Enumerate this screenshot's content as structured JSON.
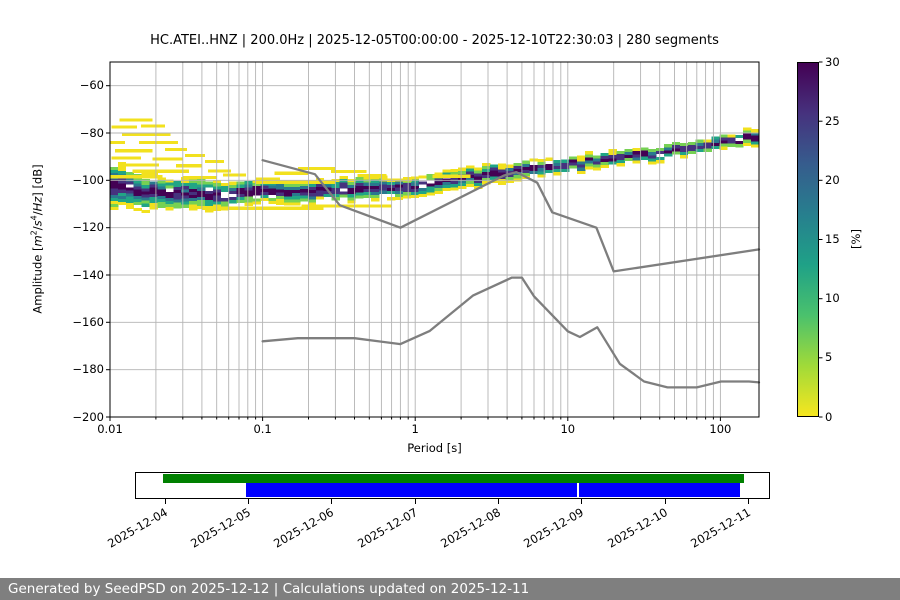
{
  "chart_data": {
    "type": "heatmap",
    "title": "HC.ATEI..HNZ | 200.0Hz | 2025-12-05T00:00:00 - 2025-12-10T22:30:03 | 280 segments",
    "xlabel": "Period [s]",
    "ylabel_plain": "Amplitude [m2/s4/Hz] [dB]",
    "ylabel_parts": {
      "pre": "Amplitude [",
      "m": "m",
      "m_exp": "2",
      "sl1": "/",
      "s": "s",
      "s_exp": "4",
      "sl2": "/",
      "hz": "Hz",
      "post": "] [dB]"
    },
    "xlim": [
      0.01,
      179
    ],
    "ylim": [
      -200,
      -50
    ],
    "x_ticks": {
      "values": [
        0.01,
        0.1,
        1,
        10,
        100
      ],
      "labels": [
        "0.01",
        "0.1",
        "1",
        "10",
        "100"
      ]
    },
    "y_ticks": {
      "values": [
        -60,
        -80,
        -100,
        -120,
        -140,
        -160,
        -180,
        -200
      ],
      "labels": [
        "−60",
        "−80",
        "−100",
        "−120",
        "−140",
        "−160",
        "−180",
        "−200"
      ]
    },
    "colorbar": {
      "min": 0,
      "max": 30,
      "ticks": [
        0,
        5,
        10,
        15,
        20,
        25,
        30
      ],
      "tick_labels": [
        "0",
        "5",
        "10",
        "15",
        "20",
        "25",
        "30"
      ],
      "label": "[%]",
      "gradient_top_to_bottom": [
        "#440154",
        "#46327e",
        "#365c8d",
        "#277f8e",
        "#1fa187",
        "#4ac16d",
        "#a0da39",
        "#f6e61f"
      ]
    },
    "percent_colors": [
      [
        0.16,
        "#440154"
      ],
      [
        0.32,
        "#46327e"
      ],
      [
        0.47,
        "#2a788e"
      ],
      [
        0.62,
        "#21a585"
      ],
      [
        0.8,
        "#76d153"
      ],
      [
        1.3,
        "#f2e11e"
      ]
    ],
    "band": [
      [
        0.01,
        -101.5,
        9.5
      ],
      [
        0.013,
        -104,
        8
      ],
      [
        0.02,
        -105.5,
        7
      ],
      [
        0.035,
        -106,
        6.5
      ],
      [
        0.06,
        -106,
        5.5
      ],
      [
        0.1,
        -105,
        5
      ],
      [
        0.2,
        -104.5,
        4.8
      ],
      [
        0.4,
        -103.8,
        4.8
      ],
      [
        0.7,
        -102.8,
        4.5
      ],
      [
        1,
        -101.8,
        4.2
      ],
      [
        2,
        -99.3,
        4
      ],
      [
        3.5,
        -97,
        3.8
      ],
      [
        6,
        -95.3,
        3.5
      ],
      [
        10,
        -93.5,
        3.2
      ],
      [
        20,
        -91,
        3
      ],
      [
        40,
        -88.5,
        3
      ],
      [
        80,
        -85.5,
        3
      ],
      [
        130,
        -83,
        3
      ],
      [
        179,
        -81.2,
        3.5
      ]
    ],
    "streaks": [
      [
        0.0115,
        0.019,
        -74.5
      ],
      [
        0.0102,
        0.015,
        -77.5
      ],
      [
        0.016,
        0.023,
        -77
      ],
      [
        0.012,
        0.025,
        -80.5
      ],
      [
        0.0101,
        0.0125,
        -84
      ],
      [
        0.0155,
        0.028,
        -84
      ],
      [
        0.0108,
        0.019,
        -87.5
      ],
      [
        0.023,
        0.032,
        -87
      ],
      [
        0.0102,
        0.016,
        -90.5
      ],
      [
        0.019,
        0.03,
        -91
      ],
      [
        0.031,
        0.042,
        -89.5
      ],
      [
        0.0115,
        0.021,
        -93.5
      ],
      [
        0.027,
        0.04,
        -93.8
      ],
      [
        0.042,
        0.056,
        -92
      ],
      [
        0.014,
        0.033,
        -96.2
      ],
      [
        0.044,
        0.062,
        -96
      ],
      [
        0.055,
        0.078,
        -97.8
      ],
      [
        0.0101,
        0.022,
        -98.5
      ],
      [
        0.03,
        0.05,
        -98.8
      ],
      [
        0.09,
        0.13,
        -99.5
      ],
      [
        0.12,
        0.2,
        -97
      ],
      [
        0.17,
        0.3,
        -95
      ],
      [
        0.28,
        0.48,
        -96.3
      ],
      [
        0.42,
        0.65,
        -98
      ],
      [
        0.6,
        0.95,
        -99.8
      ],
      [
        0.09,
        0.3,
        -100.8
      ],
      [
        1.3,
        2.3,
        -98.3
      ],
      [
        0.04,
        0.25,
        -111.8
      ],
      [
        0.18,
        0.7,
        -110.8
      ]
    ],
    "noise_models": {
      "nhnm": [
        [
          0.1,
          -91.5
        ],
        [
          0.22,
          -97.4
        ],
        [
          0.32,
          -110.5
        ],
        [
          0.8,
          -120
        ],
        [
          3.8,
          -98
        ],
        [
          4.6,
          -96.5
        ],
        [
          6.3,
          -101
        ],
        [
          7.9,
          -113.5
        ],
        [
          15.4,
          -120
        ],
        [
          20,
          -138.5
        ],
        [
          179,
          -129.2
        ]
      ],
      "nlnm": [
        [
          0.1,
          -168
        ],
        [
          0.17,
          -166.7
        ],
        [
          0.4,
          -166.7
        ],
        [
          0.8,
          -169.2
        ],
        [
          1.24,
          -163.7
        ],
        [
          2.4,
          -148.6
        ],
        [
          4.3,
          -141.1
        ],
        [
          5,
          -141.1
        ],
        [
          6,
          -149
        ],
        [
          10,
          -163.8
        ],
        [
          12,
          -166.2
        ],
        [
          15.6,
          -162.1
        ],
        [
          21.9,
          -177.5
        ],
        [
          31.6,
          -185
        ],
        [
          45,
          -187.5
        ],
        [
          70,
          -187.5
        ],
        [
          101,
          -185
        ],
        [
          154,
          -185
        ],
        [
          179,
          -185.4
        ]
      ]
    },
    "grid": {
      "color": "#b4b4b4",
      "x_minor": true,
      "y_major": true
    },
    "colors": {
      "noise_line": "#7e7e7e",
      "spine": "#000000"
    }
  },
  "timeline": {
    "dates": [
      "2025-12-04",
      "2025-12-05",
      "2025-12-06",
      "2025-12-07",
      "2025-12-08",
      "2025-12-09",
      "2025-12-10",
      "2025-12-11"
    ],
    "tick_first": 0.047,
    "tick_step": 0.1312,
    "bars": [
      {
        "name": "availability-bar",
        "color": "#008000",
        "row": "top",
        "start": 0.044,
        "end": 0.959,
        "gaps": []
      },
      {
        "name": "coverage-bar",
        "color": "#0000ff",
        "row": "bottom",
        "start": 0.175,
        "end": 0.953,
        "gaps": [
          0.696
        ]
      }
    ]
  },
  "footer": {
    "text": "Generated by SeedPSD on 2025-12-12 | Calculations updated on 2025-12-11",
    "bg": "#7f7f7f"
  }
}
